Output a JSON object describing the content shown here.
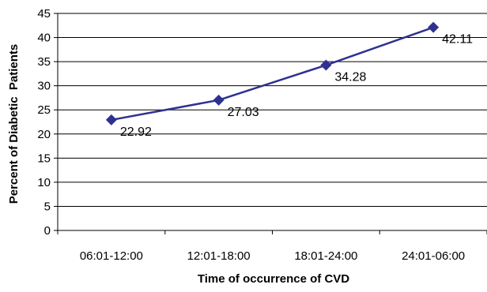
{
  "chart_data": {
    "type": "line",
    "categories": [
      "06:01-12:00",
      "12:01-18:00",
      "18:01-24:00",
      "24:01-06:00"
    ],
    "series": [
      {
        "values": [
          22.92,
          27.03,
          34.28,
          42.11
        ],
        "color": "#2e3192"
      }
    ],
    "data_labels": [
      "22.92",
      "27.03",
      "34.28",
      "42.11"
    ],
    "xlabel": "Time of occurrence of CVD",
    "ylabel": "Percent of Diabetic  Patients",
    "ylim": [
      0,
      45
    ],
    "yticks": [
      0,
      5,
      10,
      15,
      20,
      25,
      30,
      35,
      40,
      45
    ],
    "grid": "horizontal",
    "legend": "none",
    "marker": "diamond"
  }
}
